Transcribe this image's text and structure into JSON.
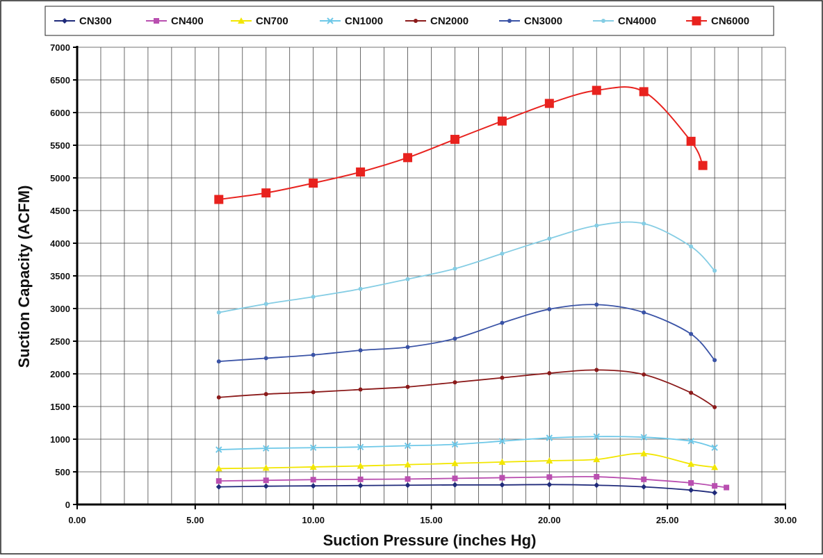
{
  "chart_data": {
    "type": "line",
    "title": "",
    "xlabel": "Suction Pressure (inches Hg)",
    "ylabel": "Suction Capacity (ACFM)",
    "xlim": [
      0,
      30
    ],
    "ylim": [
      0,
      7000
    ],
    "x_ticks": [
      "0.00",
      "5.00",
      "10.00",
      "15.00",
      "20.00",
      "25.00",
      "30.00"
    ],
    "y_ticks": [
      "0",
      "500",
      "1000",
      "1500",
      "2000",
      "2500",
      "3000",
      "3500",
      "4000",
      "4500",
      "5000",
      "5500",
      "6000",
      "6500",
      "7000"
    ],
    "grid": true,
    "legend_position": "top",
    "series": [
      {
        "name": "CN300",
        "color": "#1f2a7a",
        "marker": "diamond",
        "x": [
          6,
          8,
          10,
          12,
          14,
          16,
          18,
          20,
          22,
          24,
          26,
          27
        ],
        "y": [
          270,
          280,
          285,
          290,
          295,
          300,
          300,
          305,
          295,
          270,
          220,
          180
        ]
      },
      {
        "name": "CN400",
        "color": "#b94fb0",
        "marker": "square",
        "x": [
          6,
          8,
          10,
          12,
          14,
          16,
          18,
          20,
          22,
          24,
          26,
          27,
          27.5
        ],
        "y": [
          360,
          370,
          380,
          385,
          390,
          400,
          410,
          420,
          425,
          385,
          330,
          285,
          260
        ]
      },
      {
        "name": "CN700",
        "color": "#f2e600",
        "marker": "triangle",
        "x": [
          6,
          8,
          10,
          12,
          14,
          16,
          18,
          20,
          22,
          24,
          26,
          27
        ],
        "y": [
          550,
          560,
          575,
          590,
          610,
          630,
          650,
          670,
          690,
          780,
          620,
          570
        ]
      },
      {
        "name": "CN1000",
        "color": "#6ec8e8",
        "marker": "x",
        "x": [
          6,
          8,
          10,
          12,
          14,
          16,
          18,
          20,
          22,
          24,
          26,
          27
        ],
        "y": [
          840,
          860,
          870,
          880,
          900,
          920,
          970,
          1020,
          1040,
          1030,
          970,
          870
        ]
      },
      {
        "name": "CN2000",
        "color": "#8b1a1a",
        "marker": "circle",
        "x": [
          6,
          8,
          10,
          12,
          14,
          16,
          18,
          20,
          22,
          24,
          26,
          27
        ],
        "y": [
          1640,
          1690,
          1720,
          1760,
          1800,
          1870,
          1940,
          2010,
          2060,
          1990,
          1710,
          1490
        ]
      },
      {
        "name": "CN3000",
        "color": "#3a53a6",
        "marker": "circle",
        "x": [
          6,
          8,
          10,
          12,
          14,
          16,
          18,
          20,
          22,
          24,
          26,
          27
        ],
        "y": [
          2190,
          2240,
          2290,
          2360,
          2410,
          2540,
          2780,
          2990,
          3060,
          2940,
          2610,
          2210
        ]
      },
      {
        "name": "CN4000",
        "color": "#85cde4",
        "marker": "circle",
        "x": [
          6,
          8,
          10,
          12,
          14,
          16,
          18,
          20,
          22,
          24,
          26,
          27
        ],
        "y": [
          2940,
          3070,
          3180,
          3300,
          3450,
          3610,
          3840,
          4070,
          4270,
          4300,
          3950,
          3580
        ]
      },
      {
        "name": "CN6000",
        "color": "#e8221e",
        "marker": "square-big",
        "x": [
          6,
          8,
          10,
          12,
          14,
          16,
          18,
          20,
          22,
          24,
          26,
          26.5
        ],
        "y": [
          4670,
          4770,
          4920,
          5090,
          5310,
          5590,
          5870,
          6140,
          6340,
          6320,
          5560,
          5190
        ]
      }
    ]
  }
}
